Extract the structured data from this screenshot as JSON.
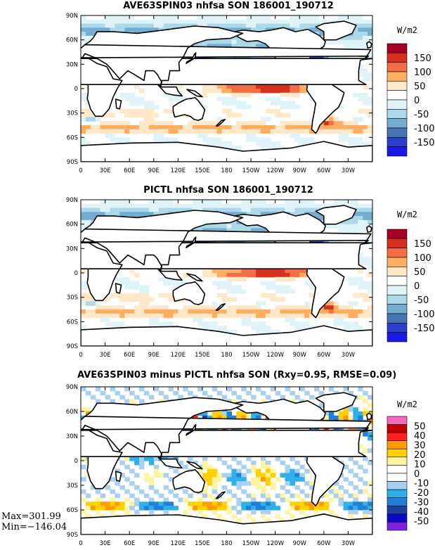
{
  "panels": [
    {
      "title": "AVE63SPIN03 nhfsa SON 186001_190712",
      "units": "W/m2",
      "colorbar": {
        "labels": [
          "150",
          "100",
          "50",
          "0",
          "-50",
          "-100",
          "-150"
        ],
        "colors": [
          "#a50026",
          "#d7301f",
          "#f46d43",
          "#fdae61",
          "#fee8c8",
          "#ffffff",
          "#e0f3f8",
          "#abd9e9",
          "#74add1",
          "#4575b4",
          "#2c3fc8",
          "#1a1ae6"
        ]
      },
      "chart_data": {
        "type": "heatmap",
        "variable": "nhfsa",
        "season": "SON",
        "period": "186001_190712",
        "clim": [
          -150,
          150
        ]
      }
    },
    {
      "title": "PICTL nhfsa SON 186001_190712",
      "units": "W/m2",
      "colorbar": {
        "labels": [
          "150",
          "100",
          "50",
          "0",
          "-50",
          "-100",
          "-150"
        ],
        "colors": [
          "#a50026",
          "#d7301f",
          "#f46d43",
          "#fdae61",
          "#fee8c8",
          "#ffffff",
          "#e0f3f8",
          "#abd9e9",
          "#74add1",
          "#4575b4",
          "#2c3fc8",
          "#1a1ae6"
        ]
      },
      "chart_data": {
        "type": "heatmap",
        "variable": "nhfsa",
        "season": "SON",
        "period": "186001_190712",
        "clim": [
          -150,
          150
        ]
      }
    },
    {
      "title": "AVE63SPIN03 minus PICTL nhfsa SON (Rxy=0.95, RMSE=0.09)",
      "units": "W/m2",
      "colorbar": {
        "labels": [
          "50",
          "40",
          "30",
          "20",
          "10",
          "0",
          "-10",
          "-20",
          "-30",
          "-40",
          "-50"
        ],
        "colors": [
          "#f768c0",
          "#c00000",
          "#ff2020",
          "#ff9a00",
          "#ffd000",
          "#fff4a0",
          "#ffffff",
          "#ffffff",
          "#a8d0f0",
          "#30b0e8",
          "#2080d8",
          "#2040a0",
          "#0a0ac8",
          "#8020e0"
        ]
      },
      "chart_data": {
        "type": "heatmap",
        "variable": "nhfsa",
        "season": "SON",
        "clim": [
          -50,
          50
        ],
        "rxy": 0.95,
        "rmse": 0.09,
        "max": 301.99,
        "min": -146.04
      }
    }
  ],
  "axes": {
    "lat_labels": [
      "90N",
      "60N",
      "30N",
      "0",
      "30S",
      "60S",
      "90S"
    ],
    "lon_labels": [
      "0",
      "30E",
      "60E",
      "90E",
      "120E",
      "150E",
      "180",
      "150W",
      "120W",
      "90W",
      "60W",
      "30W"
    ]
  },
  "stats": {
    "max_text": "Max=301.99",
    "min_text": "Min=−146.04"
  }
}
